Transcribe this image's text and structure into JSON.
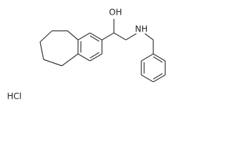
{
  "labels": {
    "hydroxyl": "OH",
    "amine": "NH",
    "salt": "HCl"
  }
}
